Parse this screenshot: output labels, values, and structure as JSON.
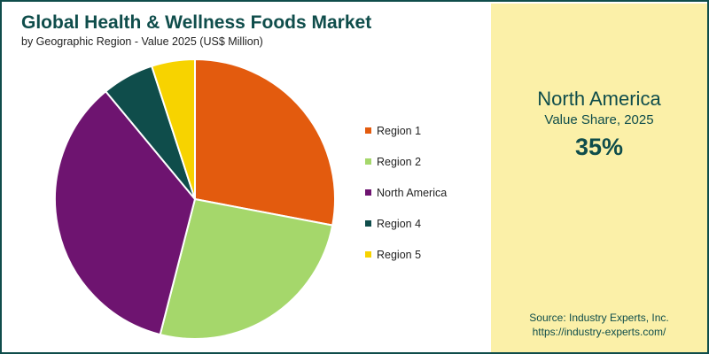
{
  "chart_data": {
    "type": "pie",
    "title": "Global Health & Wellness Foods Market",
    "subtitle": "by Geographic Region - Value 2025 (US$ Million)",
    "categories": [
      "Region 1",
      "Region 2",
      "North America",
      "Region 4",
      "Region 5"
    ],
    "values": [
      28,
      26,
      35,
      6,
      5
    ],
    "colors": [
      "#e35b0e",
      "#a5d76b",
      "#6e1470",
      "#0f4d4b",
      "#f7d300"
    ],
    "legend_position": "right"
  },
  "highlight": {
    "region": "North America",
    "label": "Value Share, 2025",
    "value": "35%"
  },
  "source": {
    "line1": "Source: Industry Experts, Inc.",
    "line2": "https://industry-experts.com/"
  }
}
